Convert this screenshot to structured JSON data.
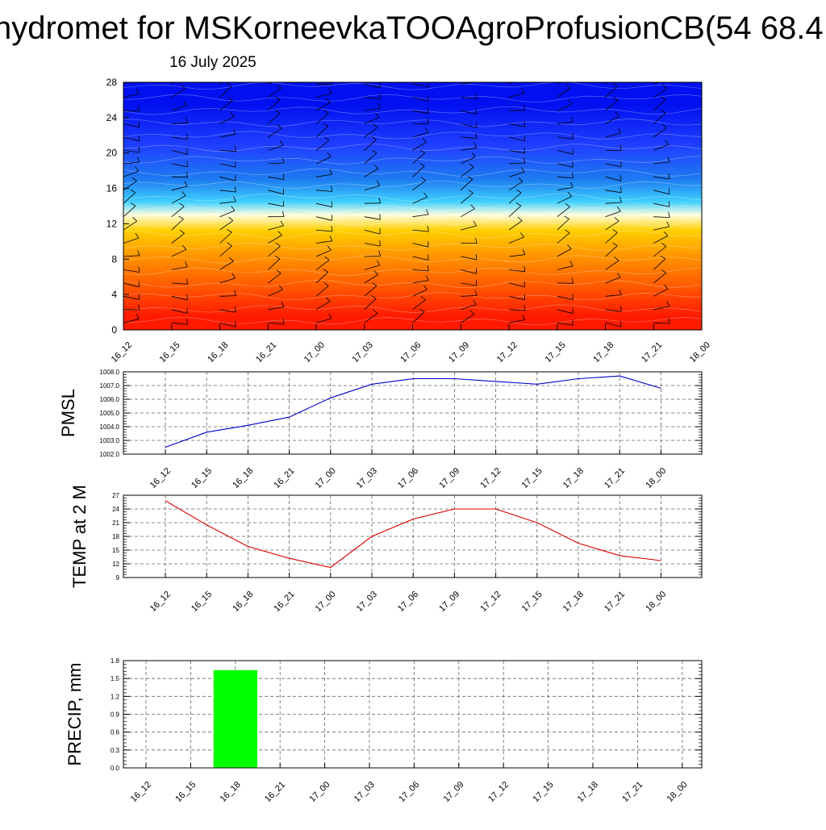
{
  "title": "hydromet for MSKorneevkaTOOAgroProfusionCB(54 68.4",
  "subtitle": "16 July 2025",
  "time_labels": [
    "16_12",
    "16_15",
    "16_18",
    "16_21",
    "17_00",
    "17_03",
    "17_06",
    "17_09",
    "17_12",
    "17_15",
    "17_18",
    "17_21",
    "18_00"
  ],
  "colors": {
    "pmsl_line": "#0000cc",
    "temp_line": "#dd0000",
    "precip_bar": "#00ff00",
    "grid": "#666666"
  },
  "chart_data": [
    {
      "type": "heatmap",
      "title": "",
      "ylabel": "",
      "x": [
        "16_12",
        "16_15",
        "16_18",
        "16_21",
        "17_00",
        "17_03",
        "17_06",
        "17_09",
        "17_12",
        "17_15",
        "17_18",
        "17_21",
        "18_00"
      ],
      "ylim": [
        0,
        28
      ],
      "yticks": [
        0,
        4,
        8,
        12,
        16,
        20,
        24,
        28
      ],
      "color_bands": [
        {
          "from": 0,
          "to": 3,
          "color": "#ff1a00"
        },
        {
          "from": 3,
          "to": 7,
          "color": "#ff5a00"
        },
        {
          "from": 7,
          "to": 10,
          "color": "#ff9800"
        },
        {
          "from": 10,
          "to": 12.5,
          "color": "#ffd000"
        },
        {
          "from": 12.5,
          "to": 13.5,
          "color": "#fffde0"
        },
        {
          "from": 13.5,
          "to": 15.5,
          "color": "#40d0ff"
        },
        {
          "from": 15.5,
          "to": 18.5,
          "color": "#1e7cf0"
        },
        {
          "from": 18.5,
          "to": 23,
          "color": "#2040ff"
        },
        {
          "from": 23,
          "to": 28,
          "color": "#0010f0"
        }
      ],
      "wind_barbs": true
    },
    {
      "type": "line",
      "ylabel": "PMSL",
      "x": [
        "16_12",
        "16_15",
        "16_18",
        "16_21",
        "17_00",
        "17_03",
        "17_06",
        "17_09",
        "17_12",
        "17_15",
        "17_18",
        "17_21",
        "18_00"
      ],
      "series": [
        {
          "values": [
            1002.5,
            1003.6,
            1004.1,
            1004.7,
            1006.1,
            1007.1,
            1007.5,
            1007.5,
            1007.3,
            1007.1,
            1007.5,
            1007.7,
            1006.8
          ]
        }
      ],
      "ylim": [
        1002.0,
        1008.0
      ],
      "yticks": [
        "1002.0",
        "1003.0",
        "1004.0",
        "1005.0",
        "1006.0",
        "1007.0",
        "1008.0"
      ],
      "grid": true
    },
    {
      "type": "line",
      "ylabel": "TEMP at 2 M",
      "x": [
        "16_12",
        "16_15",
        "16_18",
        "16_21",
        "17_00",
        "17_03",
        "17_06",
        "17_09",
        "17_12",
        "17_15",
        "17_18",
        "17_21",
        "18_00"
      ],
      "series": [
        {
          "values": [
            25.8,
            20.5,
            15.8,
            13.2,
            11.2,
            18.0,
            21.8,
            24.0,
            24.0,
            21.0,
            16.5,
            13.8,
            12.7
          ]
        }
      ],
      "ylim": [
        9,
        27
      ],
      "yticks": [
        "9",
        "12",
        "15",
        "18",
        "21",
        "24",
        "27"
      ],
      "grid": true
    },
    {
      "type": "bar",
      "ylabel": "PRECIP, mm",
      "x": [
        "16_12",
        "16_15",
        "16_18",
        "16_21",
        "17_00",
        "17_03",
        "17_06",
        "17_09",
        "17_12",
        "17_15",
        "17_18",
        "17_21",
        "18_00"
      ],
      "values": [
        0,
        0,
        1.64,
        0,
        0,
        0,
        0,
        0,
        0,
        0,
        0,
        0,
        0
      ],
      "ylim": [
        0,
        1.8
      ],
      "yticks": [
        "0.0",
        "0.3",
        "0.6",
        "0.9",
        "1.2",
        "1.5",
        "1.8"
      ],
      "grid": true
    }
  ]
}
